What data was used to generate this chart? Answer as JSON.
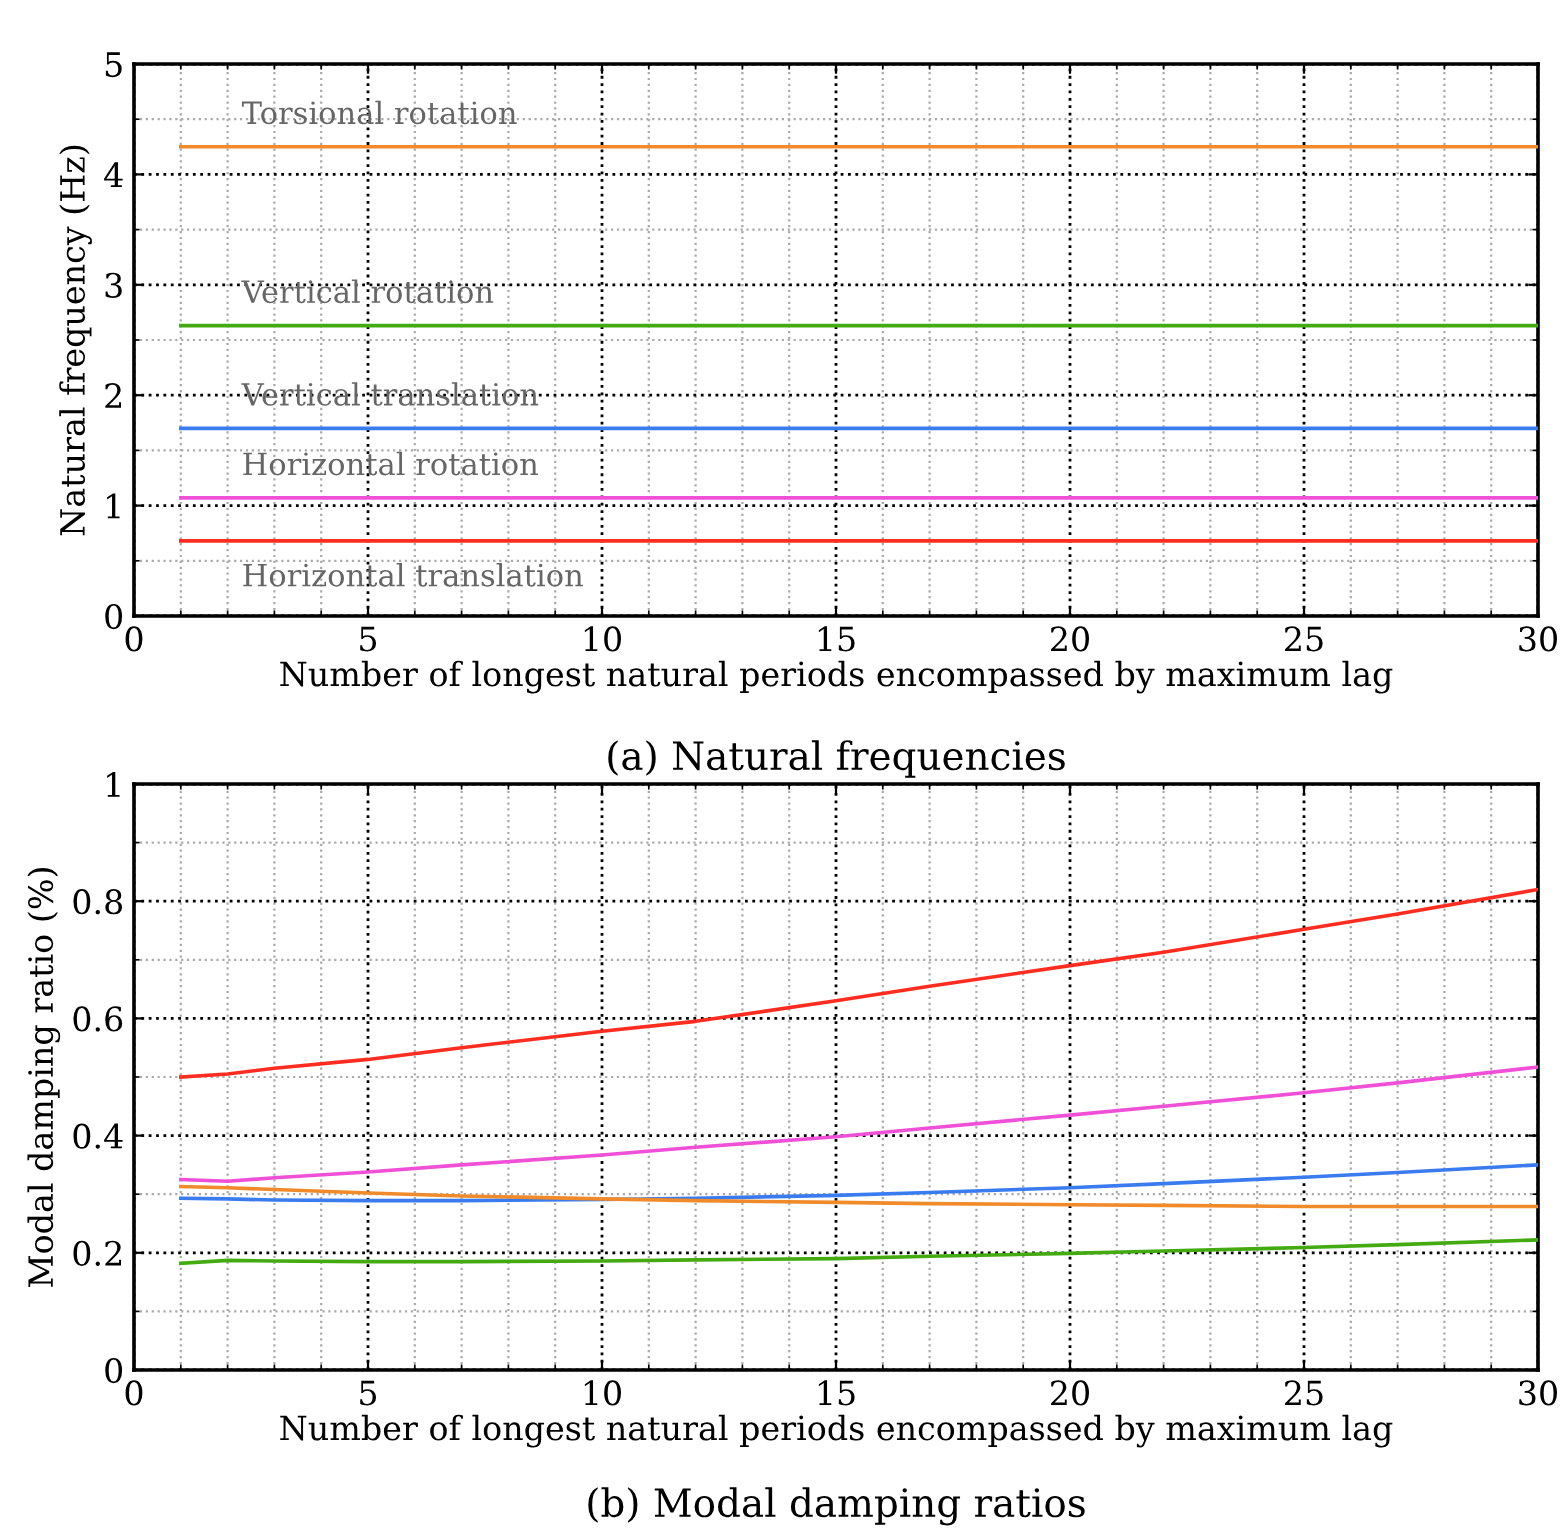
{
  "chart_data": [
    {
      "type": "line",
      "title": "(a) Natural frequencies",
      "xlabel": "Number of longest natural periods encompassed by maximum lag",
      "ylabel": "Natural frequency (Hz)",
      "x": [
        1,
        30
      ],
      "xlim": [
        0,
        30
      ],
      "xticks": [
        0,
        5,
        10,
        15,
        20,
        25,
        30
      ],
      "ylim": [
        0,
        5
      ],
      "yticks": [
        0,
        1,
        2,
        3,
        4,
        5
      ],
      "grid": true,
      "line_style": "solid",
      "marker": "none",
      "series": [
        {
          "name": "Torsional rotation",
          "color": "#f08a2a",
          "values": [
            4.25,
            4.25
          ]
        },
        {
          "name": "Vertical rotation",
          "color": "#44aa11",
          "values": [
            2.63,
            2.63
          ]
        },
        {
          "name": "Vertical translation",
          "color": "#3a7cf0",
          "values": [
            1.7,
            1.7
          ]
        },
        {
          "name": "Horizontal rotation",
          "color": "#f050d8",
          "values": [
            1.07,
            1.07
          ]
        },
        {
          "name": "Horizontal translation",
          "color": "#ff2c1f",
          "values": [
            0.68,
            0.68
          ]
        }
      ]
    },
    {
      "type": "line",
      "title": "(b) Modal damping ratios",
      "xlabel": "Number of longest natural periods encompassed by maximum lag",
      "ylabel": "Modal damping ratio (%)",
      "x": [
        1,
        2,
        3,
        5,
        7,
        10,
        12,
        15,
        17,
        20,
        22,
        25,
        27,
        30
      ],
      "xlim": [
        0,
        30
      ],
      "xticks": [
        0,
        5,
        10,
        15,
        20,
        25,
        30
      ],
      "ylim": [
        0,
        1
      ],
      "yticks": [
        0,
        0.2,
        0.4,
        0.6,
        0.8,
        1
      ],
      "grid": true,
      "line_style": "solid",
      "marker": "none",
      "series": [
        {
          "color": "#ff2c1f",
          "values": [
            0.5,
            0.505,
            0.515,
            0.53,
            0.55,
            0.578,
            0.595,
            0.63,
            0.655,
            0.69,
            0.713,
            0.752,
            0.778,
            0.82
          ]
        },
        {
          "color": "#f050d8",
          "values": [
            0.325,
            0.322,
            0.328,
            0.338,
            0.35,
            0.367,
            0.38,
            0.398,
            0.413,
            0.435,
            0.45,
            0.473,
            0.49,
            0.517
          ]
        },
        {
          "color": "#3a7cf0",
          "values": [
            0.293,
            0.292,
            0.29,
            0.289,
            0.289,
            0.291,
            0.293,
            0.298,
            0.303,
            0.311,
            0.318,
            0.329,
            0.337,
            0.35
          ]
        },
        {
          "color": "#f08a2a",
          "values": [
            0.313,
            0.311,
            0.308,
            0.302,
            0.297,
            0.292,
            0.289,
            0.286,
            0.284,
            0.282,
            0.281,
            0.279,
            0.279,
            0.279
          ]
        },
        {
          "color": "#44aa11",
          "values": [
            0.182,
            0.187,
            0.186,
            0.185,
            0.185,
            0.186,
            0.188,
            0.19,
            0.194,
            0.199,
            0.203,
            0.209,
            0.214,
            0.222
          ]
        }
      ]
    }
  ]
}
